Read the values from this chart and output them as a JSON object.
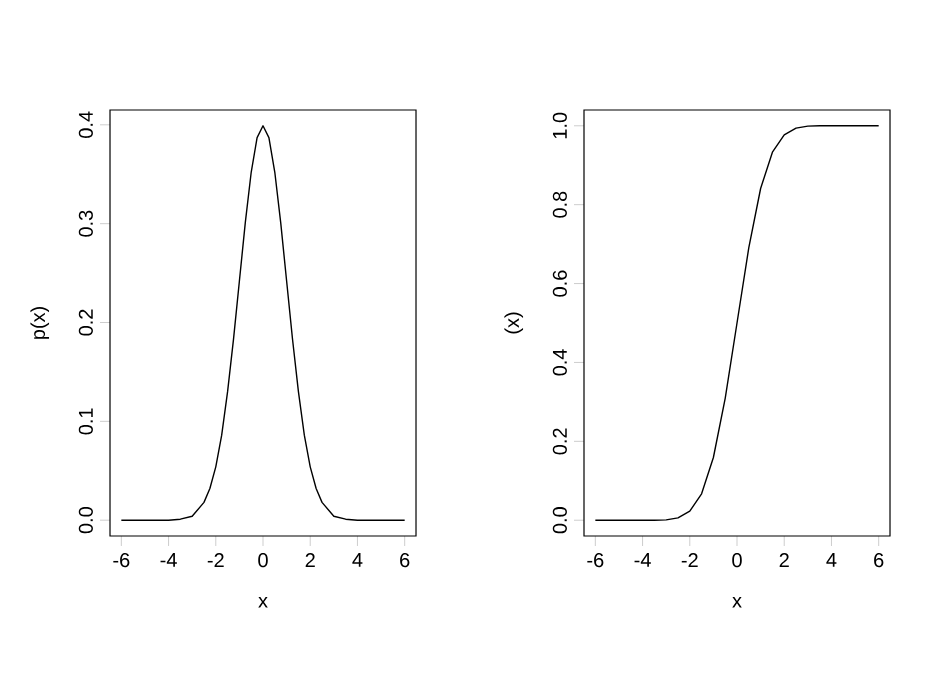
{
  "chart_data": [
    {
      "type": "line",
      "xlabel": "x",
      "ylabel": "p(x)",
      "color": "#000000",
      "x": [
        -6,
        -5,
        -4.5,
        -4,
        -3.5,
        -3,
        -2.5,
        -2.25,
        -2,
        -1.75,
        -1.5,
        -1.25,
        -1,
        -0.75,
        -0.5,
        -0.25,
        0,
        0.25,
        0.5,
        0.75,
        1,
        1.25,
        1.5,
        1.75,
        2,
        2.25,
        2.5,
        3,
        3.5,
        4,
        4.5,
        5,
        6
      ],
      "values": [
        0,
        0,
        0,
        0,
        0.001,
        0.004,
        0.018,
        0.032,
        0.054,
        0.086,
        0.13,
        0.183,
        0.242,
        0.301,
        0.352,
        0.387,
        0.399,
        0.387,
        0.352,
        0.301,
        0.242,
        0.183,
        0.13,
        0.086,
        0.054,
        0.032,
        0.018,
        0.004,
        0.001,
        0,
        0,
        0,
        0
      ],
      "xlim": [
        -6.48,
        6.48
      ],
      "ylim": [
        -0.016,
        0.415
      ],
      "xticks": [
        -6,
        -4,
        -2,
        0,
        2,
        4,
        6
      ],
      "yticks": [
        {
          "value": 0,
          "label": "0.0"
        },
        {
          "value": 0.1,
          "label": "0.1"
        },
        {
          "value": 0.2,
          "label": "0.2"
        },
        {
          "value": 0.3,
          "label": "0.3"
        },
        {
          "value": 0.4,
          "label": "0.4"
        }
      ]
    },
    {
      "type": "line",
      "xlabel": "x",
      "ylabel": "(x)",
      "color": "#000000",
      "x": [
        -6,
        -5,
        -4,
        -3.5,
        -3,
        -2.5,
        -2,
        -1.5,
        -1,
        -0.5,
        0,
        0.5,
        1,
        1.5,
        2,
        2.5,
        3,
        3.5,
        4,
        5,
        6
      ],
      "values": [
        0,
        0,
        0,
        0,
        0.001,
        0.006,
        0.023,
        0.067,
        0.159,
        0.309,
        0.5,
        0.691,
        0.841,
        0.933,
        0.977,
        0.994,
        0.999,
        1,
        1,
        1,
        1
      ],
      "xlim": [
        -6.48,
        6.48
      ],
      "ylim": [
        -0.04,
        1.04
      ],
      "xticks": [
        -6,
        -4,
        -2,
        0,
        2,
        4,
        6
      ],
      "yticks": [
        {
          "value": 0,
          "label": "0.0"
        },
        {
          "value": 0.2,
          "label": "0.2"
        },
        {
          "value": 0.4,
          "label": "0.4"
        },
        {
          "value": 0.6,
          "label": "0.6"
        },
        {
          "value": 0.8,
          "label": "0.8"
        },
        {
          "value": 1,
          "label": "1.0"
        }
      ]
    }
  ]
}
